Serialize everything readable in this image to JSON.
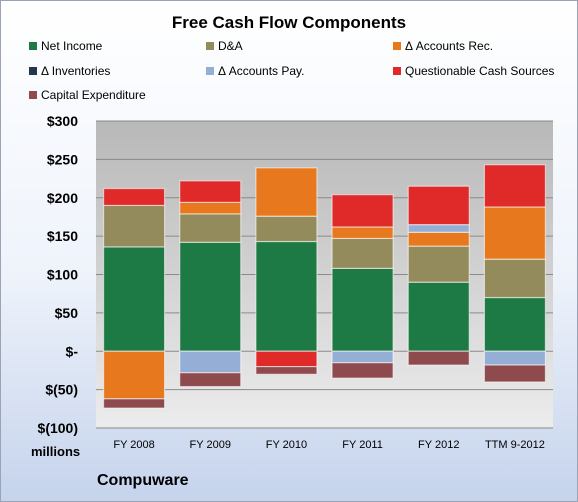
{
  "title": "Free Cash Flow Components",
  "company": "Compuware",
  "unit_label": "millions",
  "chart_data": {
    "type": "bar",
    "stacked": true,
    "title": "Free Cash Flow Components",
    "categories": [
      "FY 2008",
      "FY 2009",
      "FY 2010",
      "FY 2011",
      "FY 2012",
      "TTM 9-2012"
    ],
    "ylim": [
      -100,
      300
    ],
    "yticks": [
      300,
      250,
      200,
      150,
      100,
      50,
      0,
      -50,
      -100
    ],
    "ytick_labels": [
      "$300",
      "$250",
      "$200",
      "$150",
      "$100",
      "$50",
      "$-",
      "$(50)",
      "$(100)"
    ],
    "grid": true,
    "legend_position": "top",
    "series": [
      {
        "name": "Net Income",
        "color": "#1e7a44",
        "values": [
          136,
          142,
          143,
          108,
          90,
          70
        ]
      },
      {
        "name": "D&A",
        "color": "#938b5c",
        "values": [
          54,
          37,
          33,
          39,
          47,
          50
        ]
      },
      {
        "name": "Δ Accounts Rec.",
        "color": "#e8781e",
        "values": [
          -62,
          15,
          63,
          15,
          18,
          68
        ]
      },
      {
        "name": "Δ Inventories",
        "color": "#23384f",
        "values": [
          0,
          0,
          0,
          0,
          0,
          0
        ]
      },
      {
        "name": "Δ Accounts Pay.",
        "color": "#94aed6",
        "values": [
          0,
          -28,
          0,
          -15,
          10,
          -18
        ]
      },
      {
        "name": "Questionable Cash Sources",
        "color": "#e02a2a",
        "values": [
          22,
          28,
          0,
          42,
          50,
          55
        ]
      },
      {
        "name": "Capital Expenditure",
        "color": "#8e4a4d",
        "values": [
          -12,
          -18,
          -10,
          -20,
          -18,
          -22
        ]
      }
    ],
    "extra_negative_segments": [
      {
        "category_index": 2,
        "series_index": 5,
        "value": -20
      }
    ]
  }
}
